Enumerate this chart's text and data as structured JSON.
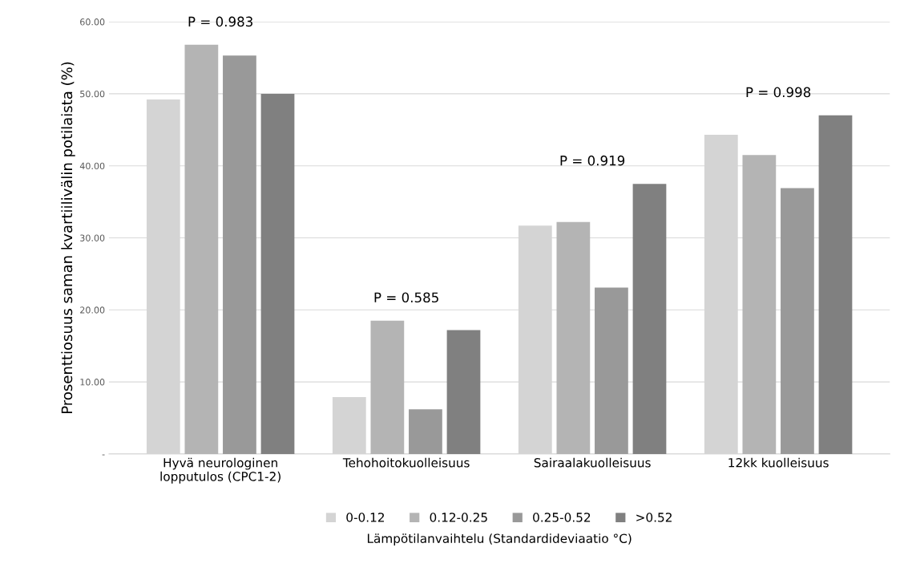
{
  "chart_data": {
    "type": "bar",
    "ylabel": "Prosenttiosuus saman kvartiilivälin potilaista (%)",
    "xlabel": "Lämpötilanvaihtelu (Standardideviaatio °C)",
    "categories": [
      "Hyvä neurologinen\nlopputulos (CPC1-2)",
      "Tehohoitokuolleisuus",
      "Sairaalakuolleisuus",
      "12kk kuolleisuus"
    ],
    "series": [
      {
        "name": "0-0.12",
        "color": "#d4d4d4",
        "values": [
          49.2,
          7.9,
          31.7,
          44.3
        ]
      },
      {
        "name": "0.12-0.25",
        "color": "#b4b4b4",
        "values": [
          56.8,
          18.5,
          32.2,
          41.5
        ]
      },
      {
        "name": "0.25-0.52",
        "color": "#999999",
        "values": [
          55.3,
          6.2,
          23.1,
          36.9
        ]
      },
      {
        "name": ">0.52",
        "color": "#808080",
        "values": [
          50.0,
          17.2,
          37.5,
          47.0
        ]
      }
    ],
    "ylim": [
      0,
      60
    ],
    "yticks": [
      {
        "value": 0,
        "label": "-"
      },
      {
        "value": 10,
        "label": "10.00"
      },
      {
        "value": 20,
        "label": "20.00"
      },
      {
        "value": 30,
        "label": "30.00"
      },
      {
        "value": 40,
        "label": "40.00"
      },
      {
        "value": 50,
        "label": "50.00"
      },
      {
        "value": 60,
        "label": "60.00"
      }
    ],
    "grid": "y",
    "legend": "bottom",
    "annotations": [
      "P = 0.983",
      "P = 0.585",
      "P = 0.919",
      "P = 0.998"
    ]
  }
}
